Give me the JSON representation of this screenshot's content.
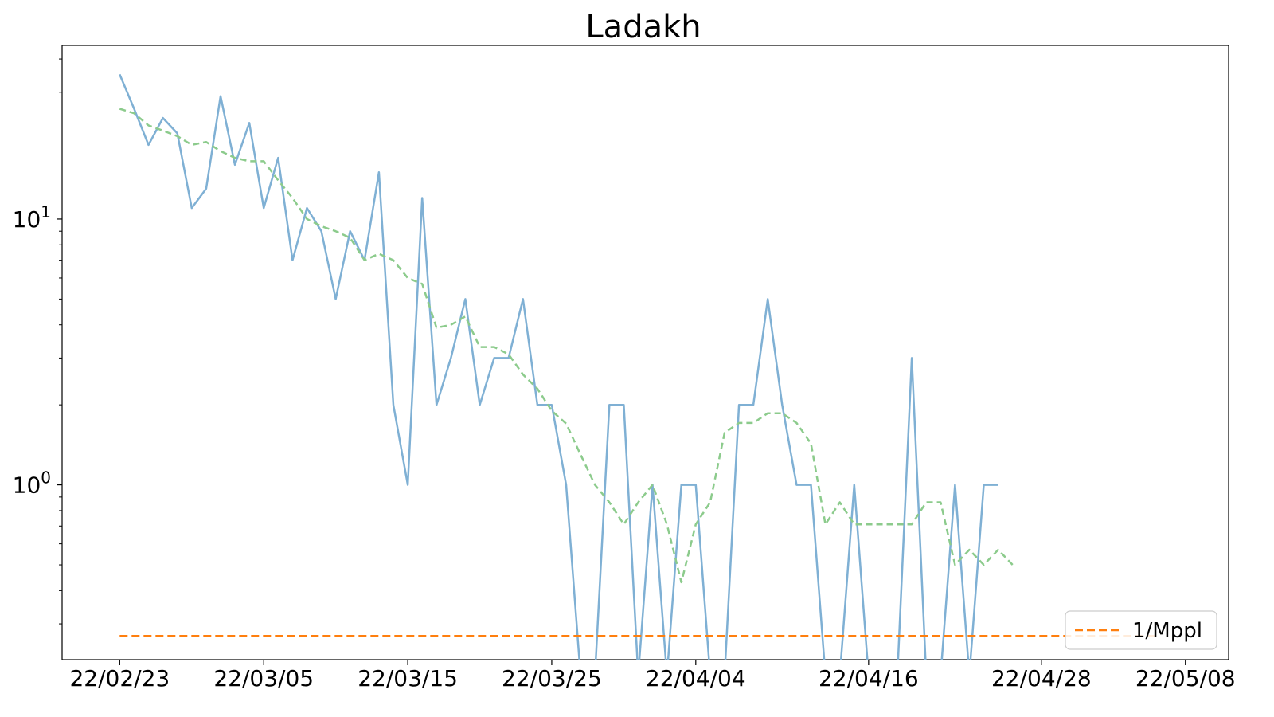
{
  "chart_data": {
    "type": "line",
    "title": "Ladakh",
    "xlabel": "",
    "ylabel": "",
    "y_scale": "log",
    "ylim": [
      0.22,
      45
    ],
    "xlim": [
      "2022-02-19",
      "2022-05-11"
    ],
    "x_ticks": [
      {
        "date": "2022-02-23",
        "label": "22/02/23"
      },
      {
        "date": "2022-03-05",
        "label": "22/03/05"
      },
      {
        "date": "2022-03-15",
        "label": "22/03/15"
      },
      {
        "date": "2022-03-25",
        "label": "22/03/25"
      },
      {
        "date": "2022-04-04",
        "label": "22/04/04"
      },
      {
        "date": "2022-04-16",
        "label": "22/04/16"
      },
      {
        "date": "2022-04-28",
        "label": "22/04/28"
      },
      {
        "date": "2022-05-08",
        "label": "22/05/08"
      }
    ],
    "y_ticks": [
      {
        "value": 1,
        "base": "10",
        "exp": "0"
      },
      {
        "value": 10,
        "base": "10",
        "exp": "1"
      }
    ],
    "grid": false,
    "legend_position": "lower-right",
    "series": [
      {
        "style": "solid",
        "color": "#7fb0d4",
        "x": [
          "2022-02-23",
          "2022-02-24",
          "2022-02-25",
          "2022-02-26",
          "2022-02-27",
          "2022-02-28",
          "2022-03-01",
          "2022-03-02",
          "2022-03-03",
          "2022-03-04",
          "2022-03-05",
          "2022-03-06",
          "2022-03-07",
          "2022-03-08",
          "2022-03-09",
          "2022-03-10",
          "2022-03-11",
          "2022-03-12",
          "2022-03-13",
          "2022-03-14",
          "2022-03-15",
          "2022-03-16",
          "2022-03-17",
          "2022-03-18",
          "2022-03-19",
          "2022-03-20",
          "2022-03-21",
          "2022-03-22",
          "2022-03-23",
          "2022-03-24",
          "2022-03-25",
          "2022-03-26",
          "2022-03-27",
          "2022-03-28",
          "2022-03-29",
          "2022-03-30",
          "2022-03-31",
          "2022-04-01",
          "2022-04-02",
          "2022-04-03",
          "2022-04-04",
          "2022-04-05",
          "2022-04-06",
          "2022-04-07",
          "2022-04-08",
          "2022-04-09",
          "2022-04-10",
          "2022-04-11",
          "2022-04-12",
          "2022-04-13",
          "2022-04-14",
          "2022-04-15",
          "2022-04-16",
          "2022-04-17",
          "2022-04-18",
          "2022-04-19",
          "2022-04-20",
          "2022-04-21",
          "2022-04-22",
          "2022-04-23",
          "2022-04-24",
          "2022-04-25"
        ],
        "values": [
          35,
          26,
          19,
          24,
          21,
          11,
          13,
          29,
          16,
          23,
          11,
          17,
          7,
          11,
          9,
          5,
          9,
          7,
          15,
          2,
          1,
          12,
          2,
          3,
          5,
          2,
          3,
          3,
          5,
          2,
          2,
          1,
          0,
          0,
          2,
          2,
          0,
          1,
          0,
          1,
          1,
          0,
          0,
          2,
          2,
          5,
          2,
          1,
          1,
          0,
          0,
          1,
          0,
          0,
          0,
          3,
          0,
          0,
          1,
          0,
          1,
          1
        ]
      },
      {
        "style": "dashed",
        "color": "#8ccb8c",
        "x": [
          "2022-02-23",
          "2022-02-24",
          "2022-02-25",
          "2022-02-26",
          "2022-02-27",
          "2022-02-28",
          "2022-03-01",
          "2022-03-02",
          "2022-03-03",
          "2022-03-04",
          "2022-03-05",
          "2022-03-06",
          "2022-03-07",
          "2022-03-08",
          "2022-03-09",
          "2022-03-10",
          "2022-03-11",
          "2022-03-12",
          "2022-03-13",
          "2022-03-14",
          "2022-03-15",
          "2022-03-16",
          "2022-03-17",
          "2022-03-18",
          "2022-03-19",
          "2022-03-20",
          "2022-03-21",
          "2022-03-22",
          "2022-03-23",
          "2022-03-24",
          "2022-03-25",
          "2022-03-26",
          "2022-03-27",
          "2022-03-28",
          "2022-03-29",
          "2022-03-30",
          "2022-03-31",
          "2022-04-01",
          "2022-04-02",
          "2022-04-03",
          "2022-04-04",
          "2022-04-05",
          "2022-04-06",
          "2022-04-07",
          "2022-04-08",
          "2022-04-09",
          "2022-04-10",
          "2022-04-11",
          "2022-04-12",
          "2022-04-13",
          "2022-04-14",
          "2022-04-15",
          "2022-04-16",
          "2022-04-17",
          "2022-04-18",
          "2022-04-19",
          "2022-04-20",
          "2022-04-21",
          "2022-04-22",
          "2022-04-23",
          "2022-04-24",
          "2022-04-25",
          "2022-04-26"
        ],
        "values": [
          26,
          25,
          22.5,
          21.5,
          20.5,
          19,
          19.5,
          18,
          17,
          16.5,
          16.5,
          14,
          12,
          10,
          9.4,
          9,
          8.5,
          7,
          7.4,
          7,
          6,
          5.7,
          3.9,
          4,
          4.3,
          3.3,
          3.3,
          3.1,
          2.6,
          2.3,
          1.9,
          1.7,
          1.3,
          1.0,
          0.86,
          0.71,
          0.86,
          1.0,
          0.71,
          0.43,
          0.71,
          0.86,
          1.57,
          1.71,
          1.71,
          1.86,
          1.86,
          1.71,
          1.43,
          0.71,
          0.86,
          0.71,
          0.71,
          0.71,
          0.71,
          0.71,
          0.86,
          0.86,
          0.5,
          0.57,
          0.5,
          0.57,
          0.5
        ]
      },
      {
        "name": "1/Mppl",
        "style": "dashed",
        "color": "#ff7f0e",
        "x": [
          "2022-02-23",
          "2022-05-06"
        ],
        "values": [
          0.27,
          0.27
        ]
      }
    ]
  }
}
